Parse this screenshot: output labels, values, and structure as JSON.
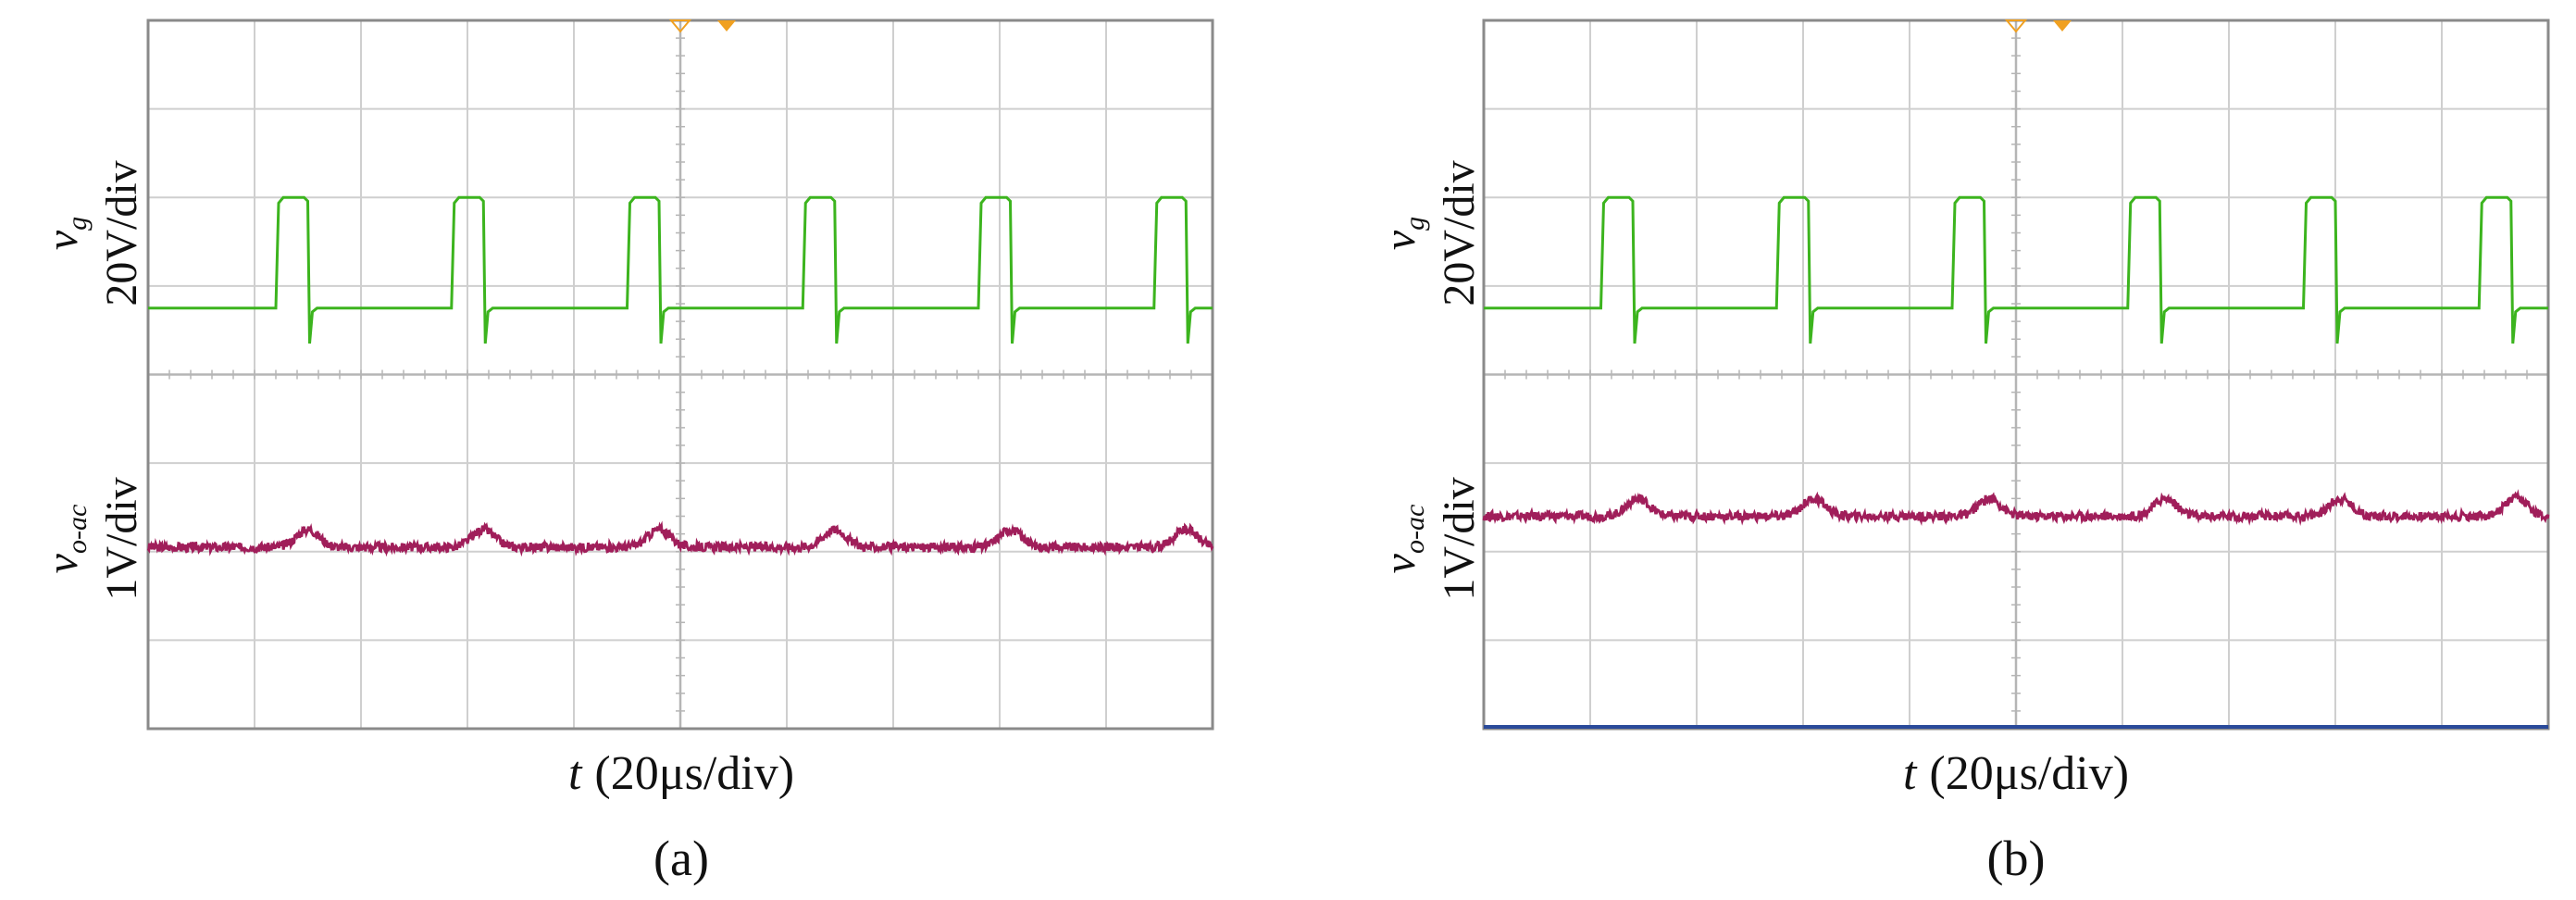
{
  "colors": {
    "vg": "#3cb41e",
    "vo": "#a01e5a",
    "grid": "#cfcfcf",
    "frame": "#8a8a8a",
    "trigger_marker": "#f0a020",
    "reference_line": "#2a4a9a"
  },
  "panels": [
    {
      "label": "(a)",
      "xlabel": "t (20μs/div)",
      "xlabel_var": "t",
      "xlabel_scale": "(20μs/div)",
      "ylabel_vg": {
        "var": "v",
        "sub": "g",
        "scale": "20V/div"
      },
      "ylabel_vo": {
        "var": "v",
        "sub": "o-ac",
        "scale": "1V/div"
      }
    },
    {
      "label": "(b)",
      "xlabel": "t (20μs/div)",
      "xlabel_var": "t",
      "xlabel_scale": "(20μs/div)",
      "ylabel_vg": {
        "var": "v",
        "sub": "g",
        "scale": "20V/div"
      },
      "ylabel_vo": {
        "var": "v",
        "sub": "o-ac",
        "scale": "1V/div"
      }
    }
  ],
  "chart_data": [
    {
      "type": "line",
      "panel": "(a)",
      "grid": true,
      "x_divisions": 10,
      "y_divisions": 8,
      "xlabel": "t (20μs/div)",
      "x_unit_per_div_us": 20,
      "series": [
        {
          "name": "vg",
          "scale_V_per_div": 20,
          "low_level_div": 4.75,
          "high_level_div": 6.0,
          "pulse_start_div": [
            1.2,
            2.85,
            4.5,
            6.15,
            7.8,
            9.45
          ],
          "pulse_width_div": 0.3
        },
        {
          "name": "vo-ac",
          "scale_V_per_div": 1,
          "baseline_div": 2.05,
          "bump_div": [
            1.5,
            3.15,
            4.8,
            6.45,
            8.1,
            9.75
          ],
          "bump_height_div": 0.2,
          "noise_div": 0.05
        }
      ]
    },
    {
      "type": "line",
      "panel": "(b)",
      "grid": true,
      "x_divisions": 10,
      "y_divisions": 8,
      "xlabel": "t (20μs/div)",
      "x_unit_per_div_us": 20,
      "series": [
        {
          "name": "vg",
          "scale_V_per_div": 20,
          "low_level_div": 4.75,
          "high_level_div": 6.0,
          "pulse_start_div": [
            1.1,
            2.75,
            4.4,
            6.05,
            7.7,
            9.35
          ],
          "pulse_width_div": 0.3
        },
        {
          "name": "vo-ac",
          "scale_V_per_div": 1,
          "baseline_div": 2.4,
          "bump_div": [
            1.45,
            3.1,
            4.75,
            6.4,
            8.05,
            9.7
          ],
          "bump_height_div": 0.2,
          "noise_div": 0.05
        }
      ]
    }
  ]
}
